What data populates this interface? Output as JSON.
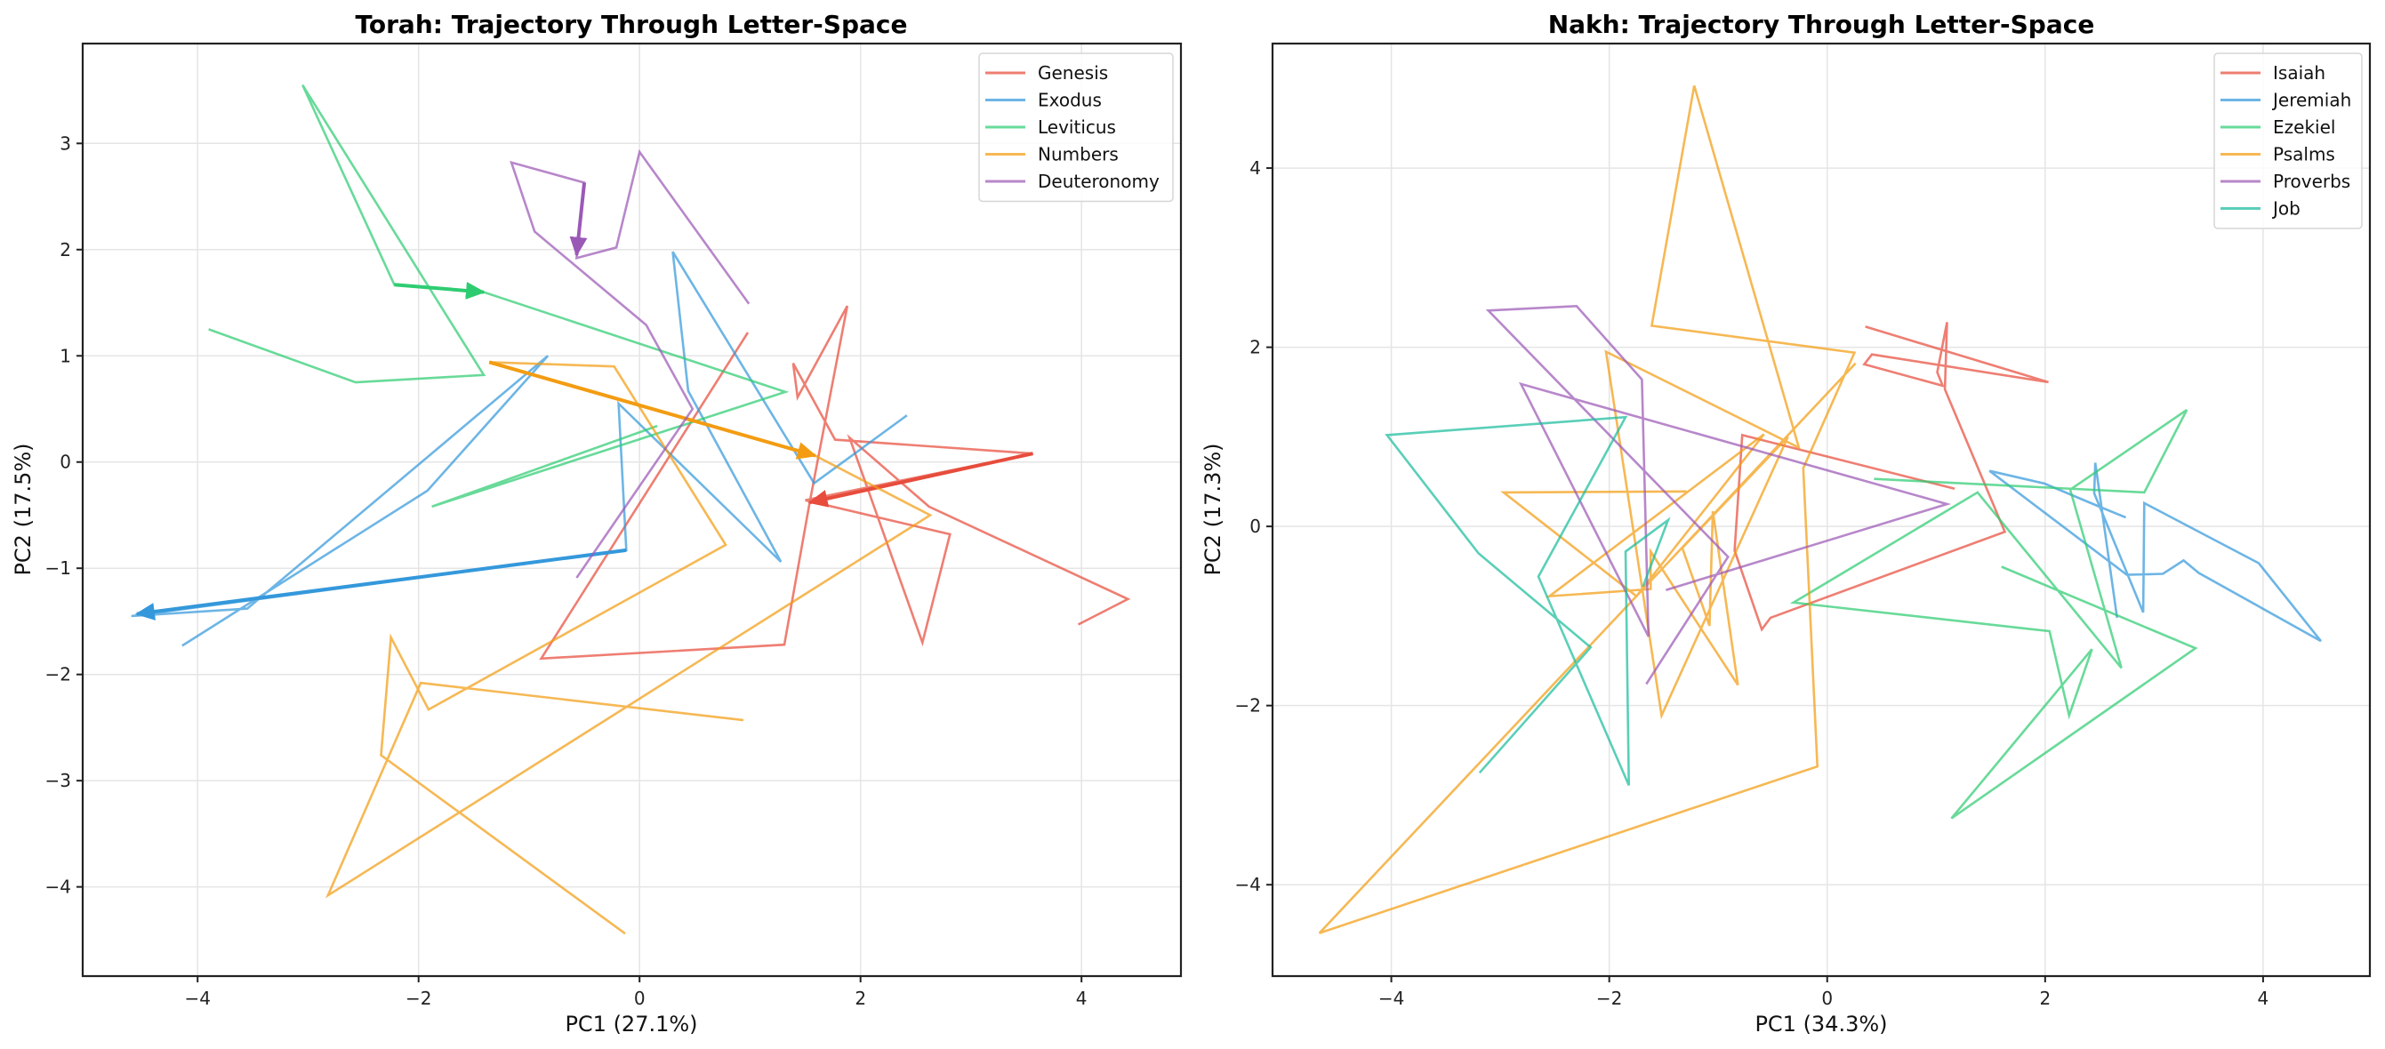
{
  "chart_data": [
    {
      "type": "line",
      "title": "Torah: Trajectory Through Letter-Space",
      "xlabel": "PC1 (27.1%)",
      "ylabel": "PC2 (17.5%)",
      "xlim": [
        -5.04,
        4.9
      ],
      "ylim": [
        -4.84,
        3.94
      ],
      "xticks": [
        -4,
        -2,
        0,
        2,
        4
      ],
      "yticks": [
        -4,
        -3,
        -2,
        -1,
        0,
        1,
        2,
        3
      ],
      "grid": true,
      "legend": "top-right",
      "series": [
        {
          "name": "Genesis",
          "color": "#e74c3c",
          "points": [
            [
              0.98,
              1.22
            ],
            [
              -0.89,
              -1.85
            ],
            [
              1.31,
              -1.72
            ],
            [
              1.54,
              -0.38
            ],
            [
              1.88,
              1.47
            ],
            [
              1.43,
              0.61
            ],
            [
              1.39,
              0.93
            ],
            [
              1.77,
              0.21
            ],
            [
              3.56,
              0.08
            ],
            [
              1.5,
              -0.36
            ],
            [
              2.81,
              -0.68
            ],
            [
              2.56,
              -1.7
            ],
            [
              1.9,
              0.23
            ],
            [
              2.62,
              -0.42
            ],
            [
              4.42,
              -1.29
            ],
            [
              3.97,
              -1.53
            ]
          ],
          "arrow": [
            [
              3.56,
              0.08
            ],
            [
              1.54,
              -0.38
            ]
          ]
        },
        {
          "name": "Exodus",
          "color": "#3498db",
          "points": [
            [
              2.42,
              0.44
            ],
            [
              1.58,
              -0.2
            ],
            [
              0.3,
              1.98
            ],
            [
              0.44,
              0.67
            ],
            [
              1.28,
              -0.94
            ],
            [
              -0.19,
              0.55
            ],
            [
              -0.12,
              -0.83
            ],
            [
              -4.6,
              -1.45
            ],
            [
              -3.55,
              -1.38
            ],
            [
              -0.83,
              1.0
            ],
            [
              -1.92,
              -0.27
            ],
            [
              -4.14,
              -1.73
            ]
          ],
          "arrow": [
            [
              -0.12,
              -0.83
            ],
            [
              -4.55,
              -1.43
            ]
          ]
        },
        {
          "name": "Leviticus",
          "color": "#2ecc71",
          "points": [
            [
              -3.9,
              1.25
            ],
            [
              -2.57,
              0.75
            ],
            [
              -1.41,
              0.82
            ],
            [
              -3.05,
              3.55
            ],
            [
              -2.22,
              1.67
            ],
            [
              -1.41,
              1.6
            ],
            [
              1.32,
              0.66
            ],
            [
              -1.88,
              -0.42
            ],
            [
              0.16,
              0.34
            ]
          ],
          "arrow": [
            [
              -2.22,
              1.67
            ],
            [
              -1.41,
              1.6
            ]
          ]
        },
        {
          "name": "Numbers",
          "color": "#f39c12",
          "points": [
            [
              -0.13,
              -4.44
            ],
            [
              -2.34,
              -2.76
            ],
            [
              -2.25,
              -1.65
            ],
            [
              -1.91,
              -2.33
            ],
            [
              0.78,
              -0.78
            ],
            [
              -0.23,
              0.9
            ],
            [
              -1.36,
              0.94
            ],
            [
              1.59,
              0.06
            ],
            [
              2.63,
              -0.5
            ],
            [
              -2.82,
              -4.08
            ],
            [
              -1.98,
              -2.08
            ],
            [
              0.94,
              -2.43
            ]
          ],
          "arrow": [
            [
              -1.36,
              0.94
            ],
            [
              1.59,
              0.06
            ]
          ]
        },
        {
          "name": "Deuteronomy",
          "color": "#9b59b6",
          "points": [
            [
              -0.57,
              -1.09
            ],
            [
              0.48,
              0.5
            ],
            [
              0.06,
              1.29
            ],
            [
              -0.95,
              2.17
            ],
            [
              -1.16,
              2.82
            ],
            [
              -0.5,
              2.63
            ],
            [
              -0.57,
              1.92
            ],
            [
              -0.21,
              2.02
            ],
            [
              0.0,
              2.92
            ],
            [
              0.99,
              1.49
            ]
          ],
          "arrow": [
            [
              -0.5,
              2.63
            ],
            [
              -0.57,
              1.95
            ]
          ]
        }
      ]
    },
    {
      "type": "line",
      "title": "Nakh: Trajectory Through Letter-Space",
      "xlabel": "PC1 (34.3%)",
      "ylabel": "PC2 (17.3%)",
      "xlim": [
        -5.09,
        4.98
      ],
      "ylim": [
        -5.02,
        5.39
      ],
      "xticks": [
        -4,
        -2,
        0,
        2,
        4
      ],
      "yticks": [
        -4,
        -2,
        0,
        2,
        4
      ],
      "grid": true,
      "legend": "top-right",
      "series": [
        {
          "name": "Isaiah",
          "color": "#e74c3c",
          "points": [
            [
              1.17,
              0.42
            ],
            [
              -0.78,
              1.02
            ],
            [
              -0.85,
              -0.27
            ],
            [
              -0.6,
              -1.15
            ],
            [
              -0.52,
              -1.02
            ],
            [
              1.63,
              -0.06
            ],
            [
              1.08,
              1.53
            ],
            [
              1.1,
              2.28
            ],
            [
              1.01,
              1.72
            ],
            [
              1.06,
              1.57
            ],
            [
              0.34,
              1.81
            ],
            [
              0.41,
              1.92
            ],
            [
              2.03,
              1.61
            ],
            [
              0.35,
              2.23
            ]
          ]
        },
        {
          "name": "Jeremiah",
          "color": "#3498db",
          "points": [
            [
              2.74,
              0.1
            ],
            [
              2.48,
              0.23
            ],
            [
              1.99,
              0.48
            ],
            [
              1.49,
              0.62
            ],
            [
              2.75,
              -0.54
            ],
            [
              3.08,
              -0.53
            ],
            [
              3.27,
              -0.38
            ],
            [
              3.41,
              -0.52
            ],
            [
              4.53,
              -1.28
            ],
            [
              3.96,
              -0.41
            ],
            [
              2.91,
              0.26
            ],
            [
              2.9,
              -0.96
            ],
            [
              2.45,
              0.37
            ],
            [
              2.46,
              0.71
            ],
            [
              2.66,
              -1.02
            ]
          ]
        },
        {
          "name": "Ezekiel",
          "color": "#2ecc71",
          "points": [
            [
              0.43,
              0.53
            ],
            [
              2.91,
              0.38
            ],
            [
              3.3,
              1.3
            ],
            [
              2.23,
              0.41
            ],
            [
              2.7,
              -1.58
            ],
            [
              1.38,
              0.38
            ],
            [
              -0.31,
              -0.85
            ],
            [
              2.04,
              -1.17
            ],
            [
              2.22,
              -2.11
            ],
            [
              2.43,
              -1.37
            ],
            [
              1.14,
              -3.26
            ],
            [
              3.38,
              -1.36
            ],
            [
              1.6,
              -0.45
            ]
          ]
        },
        {
          "name": "Psalms",
          "color": "#f39c12",
          "points": [
            [
              -1.29,
              0.39
            ],
            [
              -2.97,
              0.38
            ],
            [
              -1.75,
              -0.78
            ],
            [
              -0.58,
              1.03
            ],
            [
              -2.55,
              -0.78
            ],
            [
              -1.62,
              -0.7
            ],
            [
              -1.62,
              -0.28
            ],
            [
              -0.82,
              -1.77
            ],
            [
              -1.05,
              0.17
            ],
            [
              -1.08,
              -1.11
            ],
            [
              -1.33,
              -0.24
            ],
            [
              -0.36,
              1.0
            ],
            [
              -1.52,
              -2.11
            ],
            [
              -2.03,
              1.95
            ],
            [
              -0.26,
              0.88
            ],
            [
              -1.22,
              4.92
            ],
            [
              -1.61,
              2.24
            ],
            [
              0.25,
              1.94
            ],
            [
              -0.22,
              0.65
            ],
            [
              -0.09,
              -2.68
            ],
            [
              -4.66,
              -4.54
            ],
            [
              0.26,
              1.82
            ]
          ]
        },
        {
          "name": "Proverbs",
          "color": "#9b59b6",
          "points": [
            [
              -1.48,
              -0.71
            ],
            [
              1.1,
              0.25
            ],
            [
              -2.81,
              1.59
            ],
            [
              -1.64,
              -1.23
            ],
            [
              -1.7,
              1.64
            ],
            [
              -2.3,
              2.46
            ],
            [
              -3.11,
              2.41
            ],
            [
              -0.91,
              -0.34
            ],
            [
              -1.66,
              -1.76
            ]
          ]
        },
        {
          "name": "Job",
          "color": "#1abc9c",
          "points": [
            [
              -1.69,
              -0.67
            ],
            [
              -1.46,
              0.07
            ],
            [
              -1.85,
              -0.28
            ],
            [
              -1.82,
              -2.89
            ],
            [
              -2.65,
              -0.56
            ],
            [
              -1.85,
              1.22
            ],
            [
              -4.04,
              1.02
            ],
            [
              -3.2,
              -0.3
            ],
            [
              -2.17,
              -1.35
            ],
            [
              -3.19,
              -2.75
            ]
          ]
        }
      ]
    }
  ]
}
